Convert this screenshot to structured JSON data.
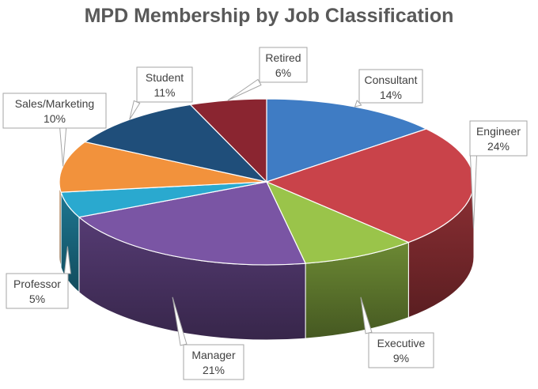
{
  "chart_data": {
    "type": "pie",
    "style": "3d",
    "title": "MPD Membership by Job Classification",
    "categories": [
      "Consultant",
      "Engineer",
      "Executive",
      "Manager",
      "Professor",
      "Sales/Marketing",
      "Student",
      "Retired"
    ],
    "values": [
      14,
      24,
      9,
      21,
      5,
      10,
      11,
      6
    ],
    "labels": [
      "14%",
      "24%",
      "9%",
      "21%",
      "5%",
      "10%",
      "11%",
      "6%"
    ],
    "colors": [
      "#3f7cc4",
      "#c9434a",
      "#9ac44a",
      "#7a55a4",
      "#2aa9cf",
      "#f2923c",
      "#1f4e7a",
      "#8a2530"
    ],
    "legend": "none",
    "data_labels": "callouts"
  }
}
